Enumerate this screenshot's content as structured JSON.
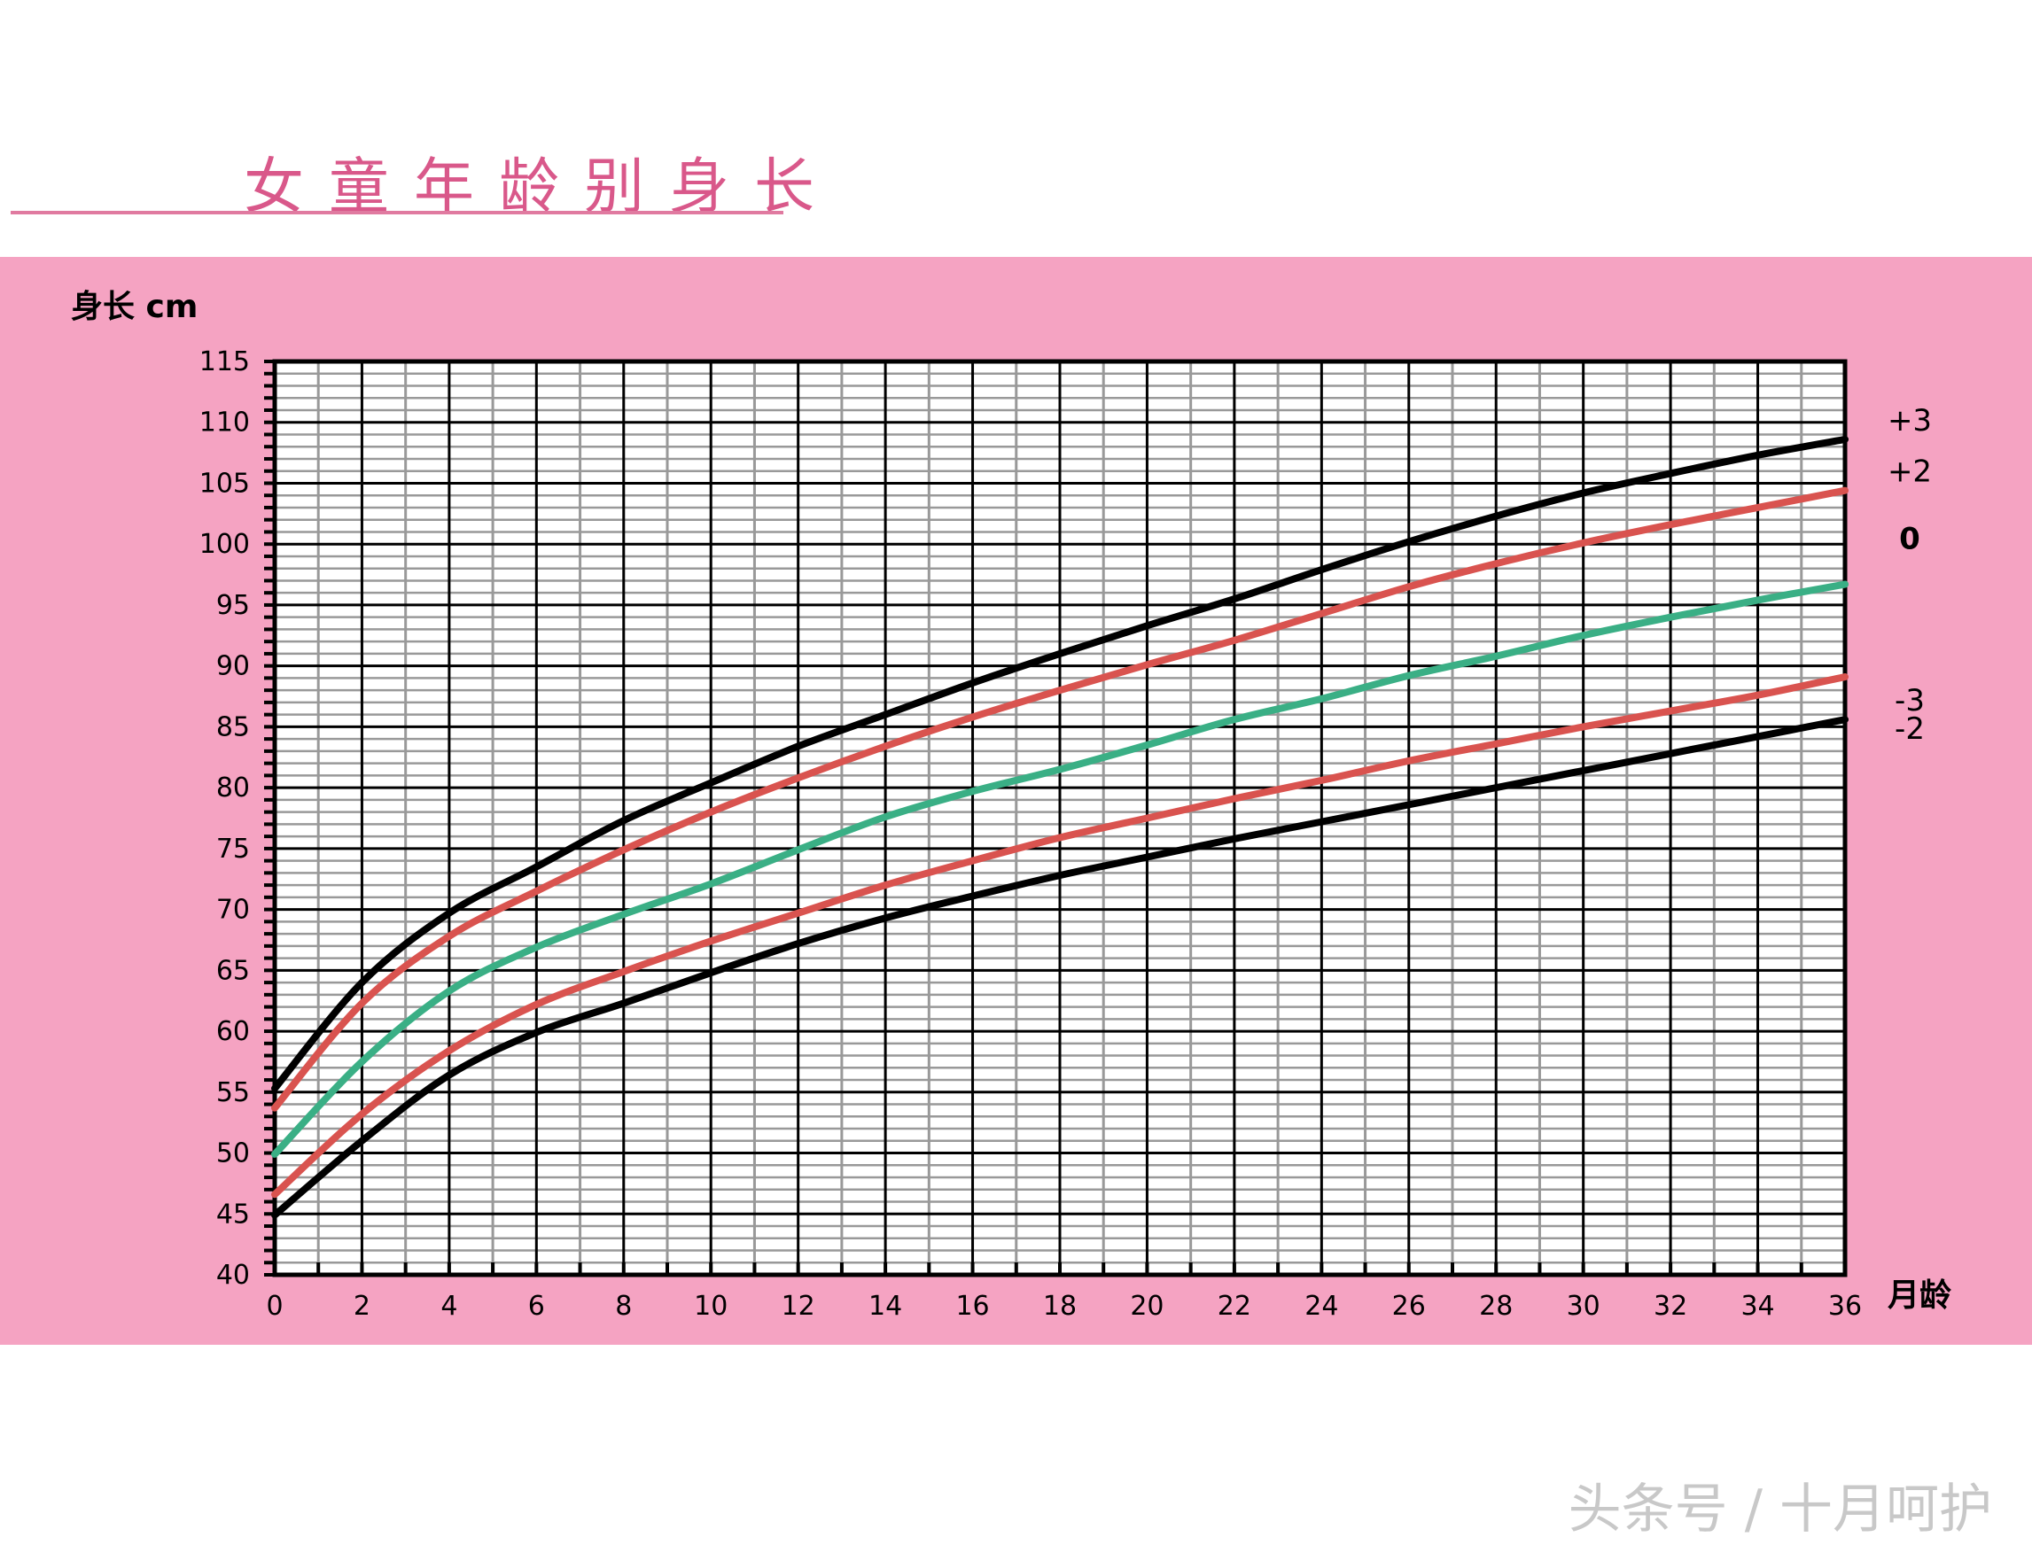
{
  "title": "女童年龄别身长",
  "watermark": "头条号 / 十月呵护",
  "colors": {
    "band": "#f5a3c2",
    "title": "#d9588a",
    "black_curve": "#000000",
    "red_curve": "#d9534f",
    "green_curve": "#3aaf85"
  },
  "chart_data": {
    "type": "line",
    "title": "女童年龄别身长",
    "ylabel": "身长 cm",
    "xlabel": "月龄",
    "xlim": [
      0,
      36
    ],
    "ylim": [
      40,
      115
    ],
    "grid": true,
    "x_ticks": [
      "0",
      "2",
      "4",
      "6",
      "8",
      "10",
      "12",
      "14",
      "16",
      "18",
      "20",
      "22",
      "24",
      "26",
      "28",
      "30",
      "32",
      "34",
      "36"
    ],
    "y_ticks": [
      "40",
      "45",
      "50",
      "55",
      "60",
      "65",
      "70",
      "75",
      "80",
      "85",
      "90",
      "95",
      "100",
      "105",
      "110",
      "115"
    ],
    "x": [
      0,
      2,
      4,
      6,
      8,
      10,
      12,
      14,
      16,
      18,
      20,
      22,
      24,
      26,
      28,
      30,
      32,
      34,
      36
    ],
    "series": [
      {
        "name": "+3",
        "color": "#000000",
        "values": [
          55.3,
          64,
          69.7,
          73.5,
          77.3,
          80.4,
          83.4,
          86,
          88.6,
          91,
          93.3,
          95.5,
          97.9,
          100.2,
          102.3,
          104.2,
          105.8,
          107.3,
          108.6
        ]
      },
      {
        "name": "+2",
        "color": "#d9534f",
        "values": [
          53.7,
          62.3,
          67.8,
          71.5,
          74.9,
          78,
          80.8,
          83.4,
          85.8,
          88,
          90.1,
          92.1,
          94.3,
          96.5,
          98.4,
          100.1,
          101.6,
          103,
          104.4
        ]
      },
      {
        "name": "0",
        "color": "#3aaf85",
        "values": [
          49.9,
          57.5,
          63.3,
          66.9,
          69.6,
          72.1,
          74.9,
          77.6,
          79.7,
          81.5,
          83.5,
          85.6,
          87.3,
          89.2,
          90.8,
          92.5,
          94,
          95.4,
          96.7
        ]
      },
      {
        "name": "-2",
        "color": "#d9534f",
        "values": [
          46.6,
          53.2,
          58.4,
          62.2,
          64.9,
          67.4,
          69.7,
          72,
          74,
          75.9,
          77.5,
          79.1,
          80.6,
          82.2,
          83.6,
          85,
          86.3,
          87.6,
          89.1
        ]
      },
      {
        "name": "-3",
        "color": "#000000",
        "values": [
          44.9,
          51,
          56.4,
          59.9,
          62.3,
          64.8,
          67.2,
          69.3,
          71.1,
          72.8,
          74.3,
          75.8,
          77.2,
          78.6,
          80,
          81.4,
          82.8,
          84.2,
          85.6
        ]
      }
    ]
  }
}
